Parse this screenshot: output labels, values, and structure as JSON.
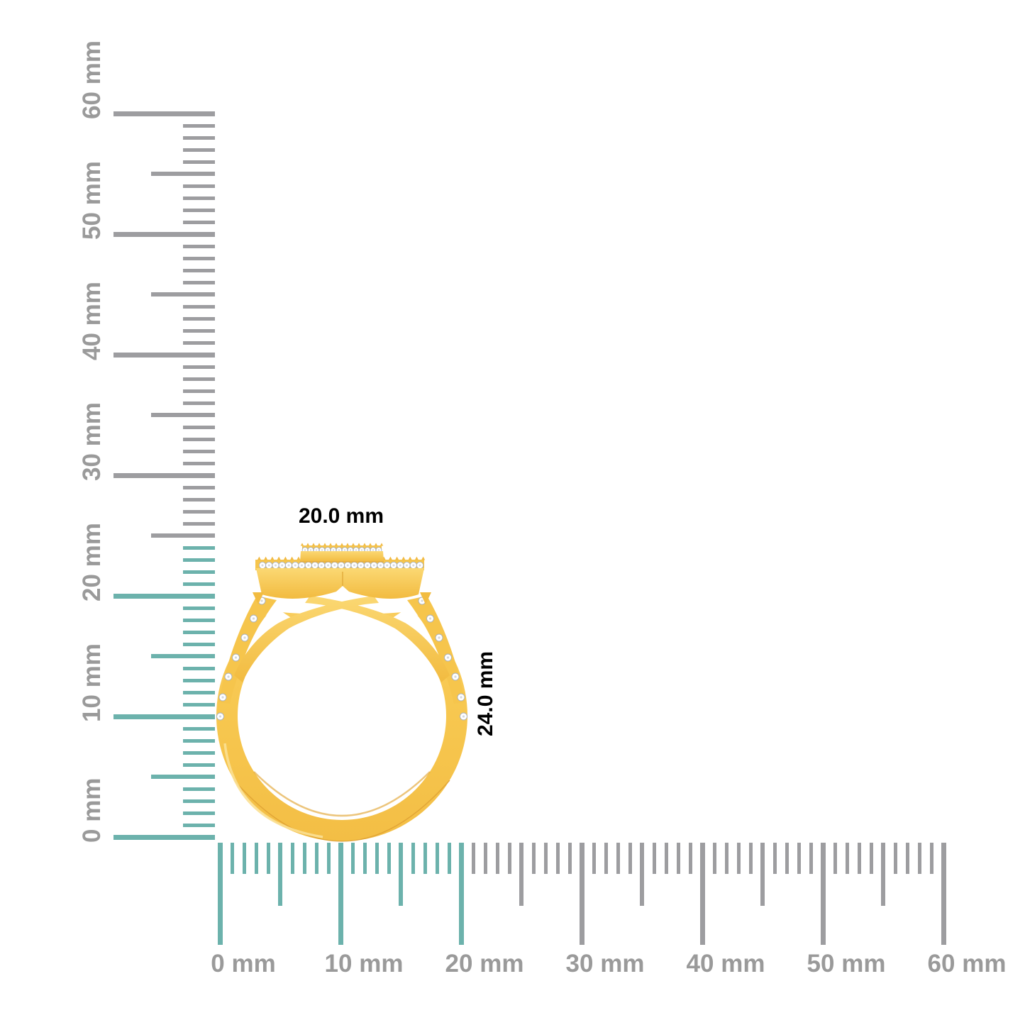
{
  "image_name": "gold-diamond-halo-ring-side-view-with-millimeter-rulers",
  "colors": {
    "background": "#ffffff",
    "ruler_highlight_teal": "#6CB2AC",
    "ruler_tick_gray": "#9D9DA0",
    "label_gray": "#9A9A9A",
    "gold_base": "#F6C54C",
    "gold_light": "#FBD873",
    "gold_dark": "#E2A636",
    "gold_outline": "#D9992E",
    "gold_highlight": "#FBE093",
    "diamond_white": "#FFFFFF",
    "diamond_edge_gray": "#A8B0BC",
    "diamond_facet_gray": "#C7CDD6"
  },
  "rulers": {
    "unit": "mm",
    "vertical": {
      "labels": [
        "0 mm",
        "10 mm",
        "20 mm",
        "30 mm",
        "40 mm",
        "50 mm",
        "60 mm"
      ],
      "min_mm": 0,
      "max_mm": 60,
      "tick_every_mm": 1,
      "medium_tick_every_mm": 5,
      "major_tick_every_mm": 10,
      "highlighted_range_mm": [
        0,
        24
      ]
    },
    "horizontal": {
      "labels": [
        "0 mm",
        "10 mm",
        "20 mm",
        "30 mm",
        "40 mm",
        "50 mm",
        "60 mm"
      ],
      "min_mm": 0,
      "max_mm": 60,
      "tick_every_mm": 1,
      "medium_tick_every_mm": 5,
      "major_tick_every_mm": 10,
      "highlighted_range_mm": [
        0,
        20
      ]
    }
  },
  "annotations": {
    "width_label": "20.0 mm",
    "height_label": "24.0 mm",
    "measured_width_mm": 20.0,
    "measured_height_mm": 24.0
  }
}
